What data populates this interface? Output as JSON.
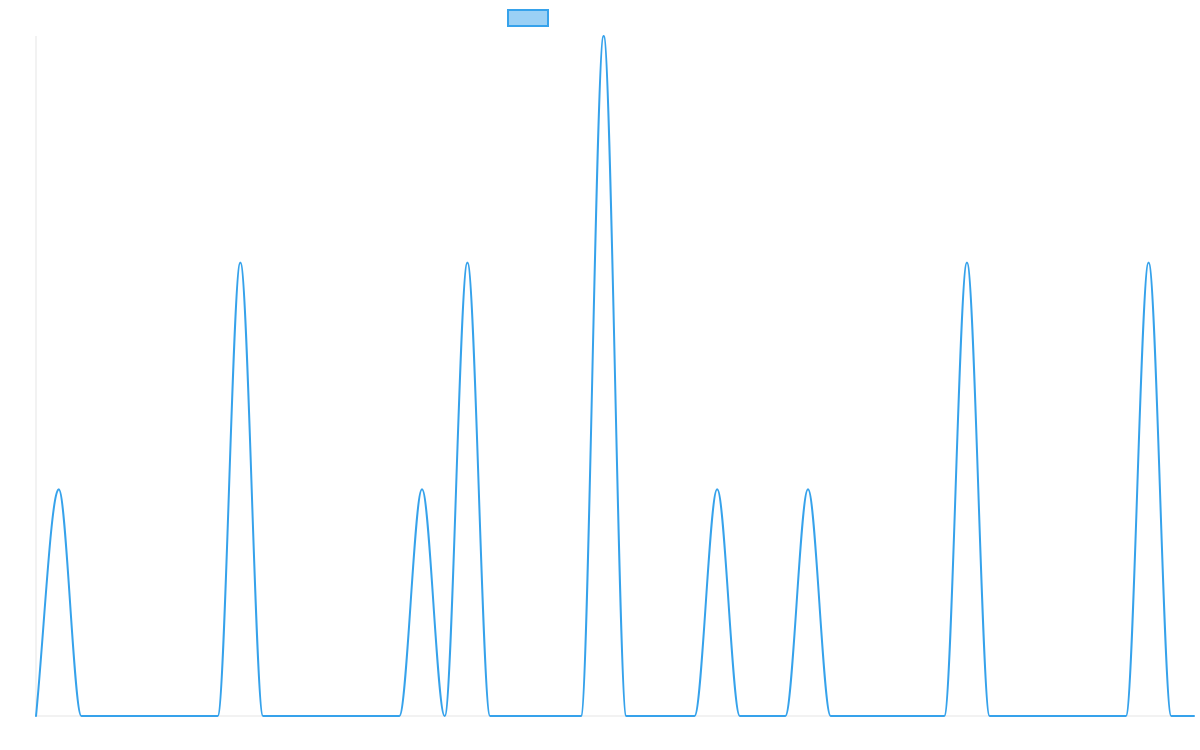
{
  "chart_data": {
    "type": "line",
    "title": "",
    "xlabel": "",
    "ylabel": "",
    "x_range": [
      0,
      51
    ],
    "ylim": [
      0,
      3
    ],
    "grid": false,
    "legend": {
      "placement": "top-center",
      "entries": [
        {
          "label": "",
          "swatch_fill": "#9ad0f5",
          "swatch_stroke": "#36a2eb"
        }
      ]
    },
    "series": [
      {
        "color": "#36a2eb",
        "interpolation": "smooth",
        "x": [
          0,
          1,
          2,
          3,
          4,
          5,
          6,
          7,
          8,
          9,
          10,
          11,
          12,
          13,
          14,
          15,
          16,
          17,
          18,
          19,
          20,
          21,
          22,
          23,
          24,
          25,
          26,
          27,
          28,
          29,
          30,
          31,
          32,
          33,
          34,
          35,
          36,
          37,
          38,
          39,
          40,
          41,
          42,
          43,
          44,
          45,
          46,
          47,
          48,
          49,
          50,
          51
        ],
        "values": [
          0,
          1,
          0,
          0,
          0,
          0,
          0,
          0,
          0,
          2,
          0,
          0,
          0,
          0,
          0,
          0,
          0,
          1,
          0,
          2,
          0,
          0,
          0,
          0,
          0,
          3,
          0,
          0,
          0,
          0,
          1,
          0,
          0,
          0,
          1,
          0,
          0,
          0,
          0,
          0,
          0,
          2,
          0,
          0,
          0,
          0,
          0,
          0,
          0,
          2,
          0,
          0
        ]
      }
    ]
  }
}
